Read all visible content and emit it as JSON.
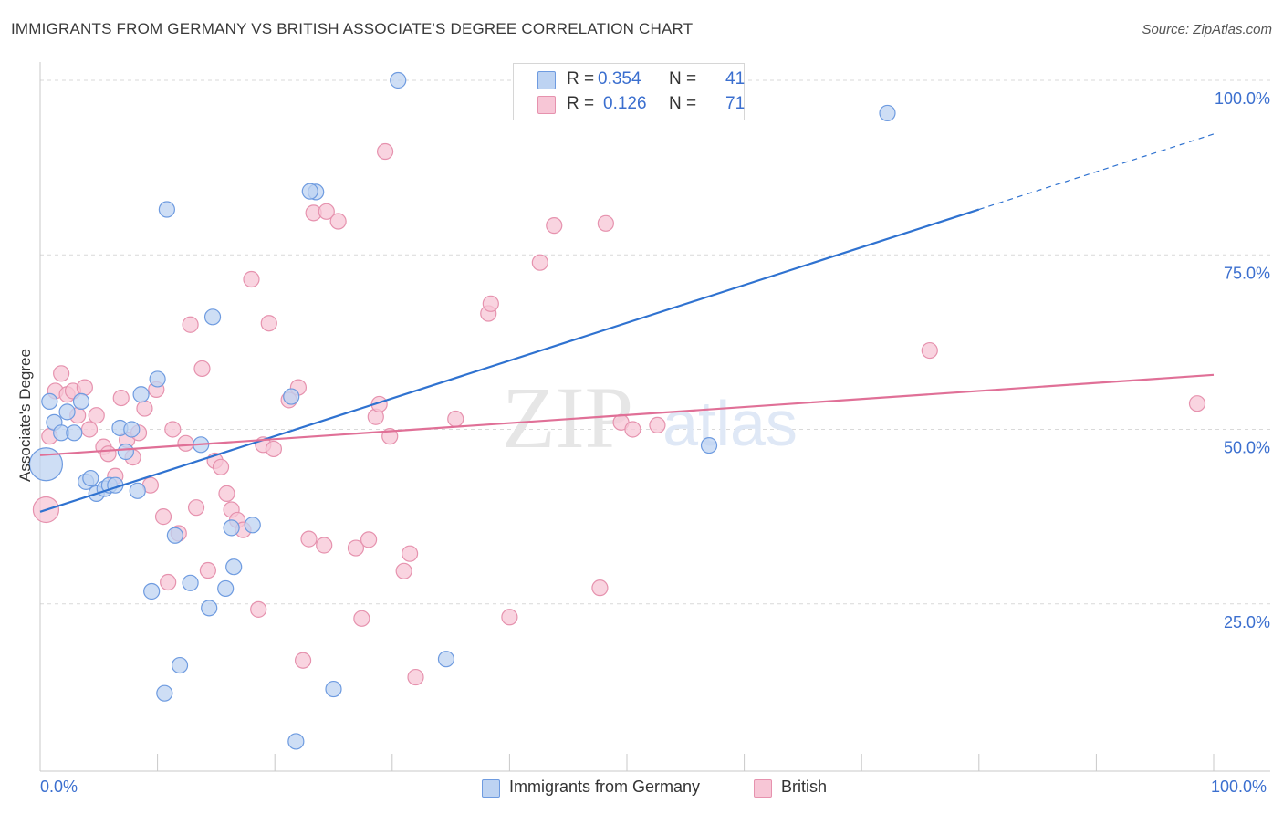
{
  "title": "IMMIGRANTS FROM GERMANY VS BRITISH ASSOCIATE'S DEGREE CORRELATION CHART",
  "source": "Source: ZipAtlas.com",
  "watermark": {
    "zip": "ZIP",
    "atlas": "atlas"
  },
  "colors": {
    "blue_fill": "#bdd3f2",
    "blue_stroke": "#6e9be0",
    "blue_line": "#2f72d0",
    "pink_fill": "#f7c6d6",
    "pink_stroke": "#e692ae",
    "pink_line": "#e07097",
    "axis_label": "#3b6fcf",
    "grid": "#d9d9d9"
  },
  "legend_top": [
    {
      "r_label": "R =",
      "r_value": "0.354",
      "n_label": "N =",
      "n_value": "41"
    },
    {
      "r_label": "R =",
      "r_value": "0.126",
      "n_label": "N =",
      "n_value": "71"
    }
  ],
  "legend_bottom": [
    "Immigrants from Germany",
    "British"
  ],
  "x_edge_labels": [
    "0.0%",
    "100.0%"
  ],
  "chart_data": {
    "type": "scatter",
    "title": "IMMIGRANTS FROM GERMANY VS BRITISH ASSOCIATE'S DEGREE CORRELATION CHART",
    "xlabel": "",
    "ylabel": "Associate's Degree",
    "xlim": [
      0,
      100
    ],
    "ylim": [
      0,
      100
    ],
    "y_ticks": [
      25,
      50,
      75,
      100
    ],
    "y_tick_labels": [
      "25.0%",
      "50.0%",
      "75.0%",
      "100.0%"
    ],
    "grid": "horizontal dashed",
    "legend_placement": "top-center and bottom",
    "series": [
      {
        "name": "Immigrants from Germany",
        "color": "#6e9be0",
        "trend": {
          "x0": 0,
          "y0": 38.2,
          "x1": 80,
          "y1": 81.5,
          "dashed_to": {
            "x": 100,
            "y": 92.3
          }
        },
        "points": [
          {
            "x": 0.5,
            "y": 45,
            "s": 18
          },
          {
            "x": 0.8,
            "y": 54
          },
          {
            "x": 1.2,
            "y": 51
          },
          {
            "x": 1.8,
            "y": 49.5
          },
          {
            "x": 2.3,
            "y": 52.5
          },
          {
            "x": 2.9,
            "y": 49.5
          },
          {
            "x": 3.5,
            "y": 54
          },
          {
            "x": 3.9,
            "y": 42.5
          },
          {
            "x": 4.3,
            "y": 43
          },
          {
            "x": 4.8,
            "y": 40.8
          },
          {
            "x": 5.5,
            "y": 41.5
          },
          {
            "x": 5.9,
            "y": 42
          },
          {
            "x": 6.4,
            "y": 42
          },
          {
            "x": 6.8,
            "y": 50.2
          },
          {
            "x": 7.3,
            "y": 46.8
          },
          {
            "x": 7.8,
            "y": 50
          },
          {
            "x": 8.3,
            "y": 41.2
          },
          {
            "x": 8.6,
            "y": 55
          },
          {
            "x": 9.5,
            "y": 26.8
          },
          {
            "x": 10,
            "y": 57.2
          },
          {
            "x": 10.6,
            "y": 12.2
          },
          {
            "x": 10.8,
            "y": 81.5
          },
          {
            "x": 11.5,
            "y": 34.8
          },
          {
            "x": 11.9,
            "y": 16.2
          },
          {
            "x": 12.8,
            "y": 28
          },
          {
            "x": 13.7,
            "y": 47.8
          },
          {
            "x": 14.4,
            "y": 24.4
          },
          {
            "x": 14.7,
            "y": 66.1
          },
          {
            "x": 15.8,
            "y": 27.2
          },
          {
            "x": 16.3,
            "y": 35.9
          },
          {
            "x": 16.5,
            "y": 30.3
          },
          {
            "x": 18.1,
            "y": 36.3
          },
          {
            "x": 21.8,
            "y": 5.3
          },
          {
            "x": 21.4,
            "y": 54.7
          },
          {
            "x": 23.5,
            "y": 84
          },
          {
            "x": 25,
            "y": 12.8
          },
          {
            "x": 30.5,
            "y": 100
          },
          {
            "x": 34.6,
            "y": 17.1
          },
          {
            "x": 57,
            "y": 47.7
          },
          {
            "x": 72.2,
            "y": 95.3
          },
          {
            "x": 23,
            "y": 84.1
          }
        ]
      },
      {
        "name": "British",
        "color": "#e692ae",
        "trend": {
          "x0": 0,
          "y0": 46.3,
          "x1": 100,
          "y1": 57.8
        },
        "points": [
          {
            "x": 0.5,
            "y": 38.5,
            "s": 14
          },
          {
            "x": 0.8,
            "y": 49
          },
          {
            "x": 1.3,
            "y": 55.5
          },
          {
            "x": 1.8,
            "y": 58
          },
          {
            "x": 2.3,
            "y": 55
          },
          {
            "x": 2.8,
            "y": 55.5
          },
          {
            "x": 3.2,
            "y": 52
          },
          {
            "x": 3.8,
            "y": 56
          },
          {
            "x": 4.2,
            "y": 50
          },
          {
            "x": 4.8,
            "y": 52
          },
          {
            "x": 5.4,
            "y": 47.5
          },
          {
            "x": 5.8,
            "y": 46.5
          },
          {
            "x": 6.4,
            "y": 43.3
          },
          {
            "x": 6.9,
            "y": 54.5
          },
          {
            "x": 7.4,
            "y": 48.5
          },
          {
            "x": 7.9,
            "y": 46
          },
          {
            "x": 8.4,
            "y": 49.5
          },
          {
            "x": 8.9,
            "y": 53
          },
          {
            "x": 9.4,
            "y": 42
          },
          {
            "x": 9.9,
            "y": 55.7
          },
          {
            "x": 10.5,
            "y": 37.5
          },
          {
            "x": 10.9,
            "y": 28.1
          },
          {
            "x": 11.3,
            "y": 50
          },
          {
            "x": 11.8,
            "y": 35.1
          },
          {
            "x": 12.4,
            "y": 48
          },
          {
            "x": 12.8,
            "y": 65
          },
          {
            "x": 13.3,
            "y": 38.8
          },
          {
            "x": 13.8,
            "y": 58.7
          },
          {
            "x": 14.3,
            "y": 29.8
          },
          {
            "x": 14.9,
            "y": 45.5
          },
          {
            "x": 15.4,
            "y": 44.6
          },
          {
            "x": 15.9,
            "y": 40.8
          },
          {
            "x": 16.3,
            "y": 38.5
          },
          {
            "x": 16.8,
            "y": 37
          },
          {
            "x": 17.3,
            "y": 35.6
          },
          {
            "x": 18,
            "y": 71.5
          },
          {
            "x": 18.6,
            "y": 24.2
          },
          {
            "x": 19,
            "y": 47.8
          },
          {
            "x": 19.5,
            "y": 65.2
          },
          {
            "x": 19.9,
            "y": 47.2
          },
          {
            "x": 21.2,
            "y": 54.2
          },
          {
            "x": 22,
            "y": 56
          },
          {
            "x": 22.4,
            "y": 16.9
          },
          {
            "x": 22.9,
            "y": 34.3
          },
          {
            "x": 23.3,
            "y": 81
          },
          {
            "x": 24.2,
            "y": 33.4
          },
          {
            "x": 24.4,
            "y": 81.2
          },
          {
            "x": 25.4,
            "y": 79.8
          },
          {
            "x": 26.9,
            "y": 33
          },
          {
            "x": 27.4,
            "y": 22.9
          },
          {
            "x": 28,
            "y": 34.2
          },
          {
            "x": 28.6,
            "y": 51.8
          },
          {
            "x": 28.9,
            "y": 53.6
          },
          {
            "x": 29.4,
            "y": 89.8
          },
          {
            "x": 29.8,
            "y": 49
          },
          {
            "x": 31,
            "y": 29.7
          },
          {
            "x": 31.5,
            "y": 32.2
          },
          {
            "x": 32,
            "y": 14.5
          },
          {
            "x": 35.4,
            "y": 51.5
          },
          {
            "x": 38.2,
            "y": 66.6
          },
          {
            "x": 38.4,
            "y": 68
          },
          {
            "x": 40,
            "y": 23.1
          },
          {
            "x": 42.6,
            "y": 73.9
          },
          {
            "x": 43.8,
            "y": 79.2
          },
          {
            "x": 47.7,
            "y": 27.3
          },
          {
            "x": 48.2,
            "y": 79.5
          },
          {
            "x": 49.5,
            "y": 51
          },
          {
            "x": 50.5,
            "y": 50
          },
          {
            "x": 52.6,
            "y": 50.6
          },
          {
            "x": 75.8,
            "y": 61.3
          },
          {
            "x": 98.6,
            "y": 53.7
          }
        ]
      }
    ]
  }
}
